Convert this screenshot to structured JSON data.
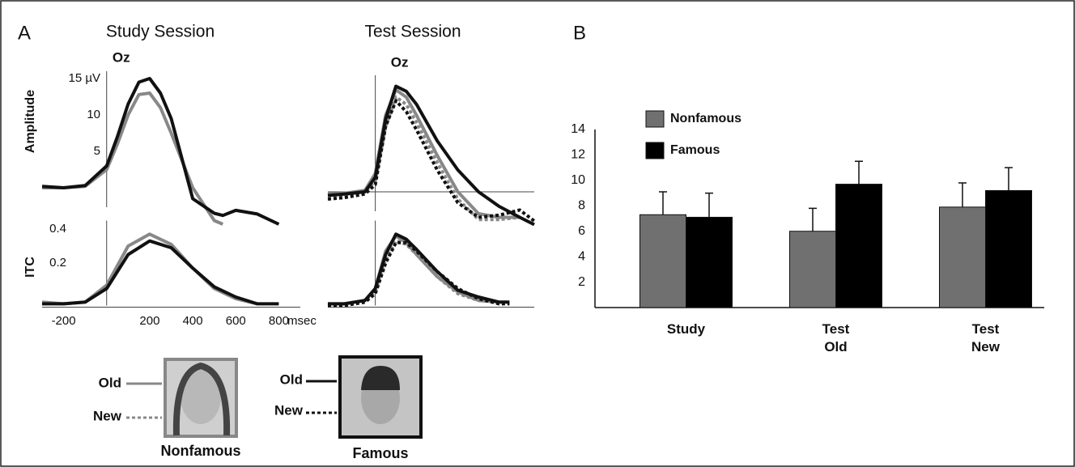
{
  "figure": {
    "panel_a": "A",
    "panel_b": "B",
    "study_session": "Study Session",
    "test_session": "Test Session",
    "legend": {
      "old_nonfamous": "Old",
      "new_nonfamous": "New",
      "nonfamous": "Nonfamous",
      "old_famous": "Old",
      "new_famous": "New",
      "famous": "Famous"
    }
  },
  "chart_data": [
    {
      "type": "line",
      "title": "Oz",
      "y_label": "Amplitude",
      "x": [
        -300,
        -200,
        -100,
        0,
        50,
        100,
        150,
        200,
        250,
        300,
        400,
        500,
        540,
        600,
        700,
        800
      ],
      "xlim": [
        -300,
        900
      ],
      "ylim": [
        -6,
        16
      ],
      "yticks": [
        5,
        10,
        {
          "value": 15,
          "label": "15 µV"
        }
      ],
      "series": [
        {
          "color": "#888888",
          "line_style": "solid",
          "values": [
            0,
            0,
            0.2,
            2.5,
            6,
            10,
            12.8,
            13,
            11,
            7.5,
            0,
            -4.5,
            -5,
            null,
            null,
            null
          ]
        },
        {
          "color": "#111111",
          "line_style": "solid",
          "values": [
            0.2,
            0,
            0.3,
            3,
            7,
            11.5,
            14.5,
            15,
            13,
            9.5,
            -1.5,
            -3.5,
            -3.8,
            -3.1,
            -3.6,
            -5
          ]
        }
      ]
    },
    {
      "type": "line",
      "y_label": "ITC",
      "x_label": "msec",
      "x": [
        -300,
        -200,
        -100,
        0,
        100,
        200,
        300,
        400,
        500,
        600,
        700,
        800
      ],
      "xlim": [
        -300,
        900
      ],
      "ylim": [
        -0.05,
        0.45
      ],
      "xticks": [
        -200,
        200,
        400,
        600,
        800
      ],
      "yticks": [
        0.2,
        0.4
      ],
      "series": [
        {
          "color": "#888888",
          "line_style": "solid",
          "values": [
            -0.03,
            -0.04,
            -0.03,
            0.07,
            0.3,
            0.37,
            0.31,
            0.17,
            0.05,
            -0.01,
            -0.04,
            null
          ]
        },
        {
          "color": "#111111",
          "line_style": "solid",
          "values": [
            -0.04,
            -0.04,
            -0.03,
            0.05,
            0.25,
            0.33,
            0.29,
            0.17,
            0.06,
            0,
            -0.04,
            -0.04
          ]
        }
      ]
    },
    {
      "type": "line",
      "title": "Oz",
      "x": [
        -230,
        -150,
        -50,
        0,
        50,
        100,
        150,
        200,
        300,
        400,
        500,
        600,
        700,
        770
      ],
      "xlim": [
        -230,
        770
      ],
      "ylim": [
        -6,
        16
      ],
      "series": [
        {
          "color": "#888888",
          "line_style": "solid",
          "values": [
            -0.3,
            -0.2,
            0.2,
            2.5,
            10.5,
            14,
            13,
            10.5,
            5,
            0,
            -3,
            -3.5,
            -3.5,
            null
          ]
        },
        {
          "color": "#888888",
          "line_style": "dotted",
          "values": [
            -0.5,
            -0.5,
            0,
            1.5,
            9,
            13,
            12,
            9.5,
            4,
            -1,
            -3.8,
            -3.8,
            -3.5,
            null
          ]
        },
        {
          "color": "#111111",
          "line_style": "solid",
          "values": [
            -0.5,
            -0.3,
            0,
            2,
            10,
            14.5,
            13.8,
            12,
            7,
            3,
            0,
            -2,
            -3.5,
            -4.5
          ]
        },
        {
          "color": "#111111",
          "line_style": "dotted",
          "values": [
            -1,
            -0.8,
            -0.3,
            1,
            9,
            12.5,
            11,
            8.5,
            3,
            -1.5,
            -3.5,
            -3.2,
            -2.5,
            -4
          ]
        }
      ]
    },
    {
      "type": "line",
      "x": [
        -230,
        -150,
        -50,
        0,
        50,
        100,
        150,
        200,
        300,
        400,
        500,
        600,
        650
      ],
      "xlim": [
        -230,
        770
      ],
      "ylim": [
        -0.05,
        0.45
      ],
      "series": [
        {
          "color": "#888888",
          "line_style": "solid",
          "values": [
            -0.04,
            -0.04,
            -0.02,
            0.05,
            0.27,
            0.36,
            0.32,
            0.25,
            0.12,
            0.03,
            -0.02,
            -0.03,
            null
          ]
        },
        {
          "color": "#888888",
          "line_style": "dotted",
          "values": [
            -0.05,
            -0.04,
            -0.02,
            0.03,
            0.22,
            0.33,
            0.31,
            0.25,
            0.12,
            0.02,
            -0.02,
            -0.03,
            null
          ]
        },
        {
          "color": "#111111",
          "line_style": "solid",
          "values": [
            -0.04,
            -0.04,
            -0.02,
            0.05,
            0.25,
            0.37,
            0.34,
            0.28,
            0.15,
            0.04,
            0,
            -0.03,
            -0.03
          ]
        },
        {
          "color": "#111111",
          "line_style": "dotted",
          "values": [
            -0.05,
            -0.05,
            -0.03,
            0.02,
            0.2,
            0.32,
            0.32,
            0.27,
            0.15,
            0.05,
            -0.01,
            -0.04,
            -0.04
          ]
        }
      ]
    },
    {
      "type": "bar",
      "categories": [
        "Study",
        "Test\nOld",
        "Test\nNew"
      ],
      "ylim": [
        0,
        14
      ],
      "yticks": [
        2,
        4,
        6,
        8,
        10,
        12,
        14
      ],
      "series": [
        {
          "name": "Nonfamous",
          "color": "#707070",
          "values": [
            7.3,
            6.0,
            7.9
          ],
          "errors": [
            1.8,
            1.8,
            1.9
          ]
        },
        {
          "name": "Famous",
          "color": "#000000",
          "values": [
            7.1,
            9.7,
            9.2
          ],
          "errors": [
            1.9,
            1.8,
            1.8
          ]
        }
      ]
    }
  ]
}
